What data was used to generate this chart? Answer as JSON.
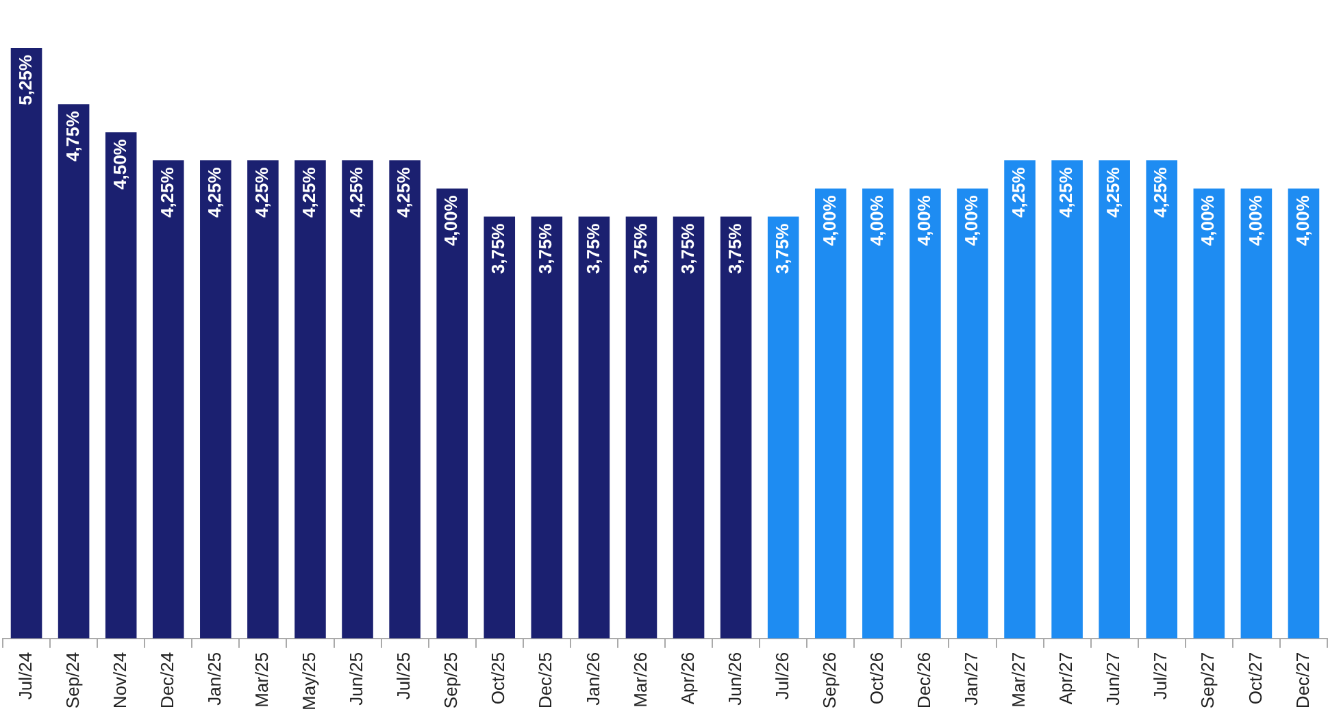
{
  "chart_data": {
    "type": "bar",
    "categories": [
      "Jul/24",
      "Sep/24",
      "Nov/24",
      "Dec/24",
      "Jan/25",
      "Mar/25",
      "May/25",
      "Jun/25",
      "Jul/25",
      "Sep/25",
      "Oct/25",
      "Dec/25",
      "Jan/26",
      "Mar/26",
      "Apr/26",
      "Jun/26",
      "Jul/26",
      "Sep/26",
      "Oct/26",
      "Dec/26",
      "Jan/27",
      "Mar/27",
      "Apr/27",
      "Jun/27",
      "Jul/27",
      "Sep/27",
      "Oct/27",
      "Dec/27"
    ],
    "values": [
      5.25,
      4.75,
      4.5,
      4.25,
      4.25,
      4.25,
      4.25,
      4.25,
      4.25,
      4.0,
      3.75,
      3.75,
      3.75,
      3.75,
      3.75,
      3.75,
      3.75,
      4.0,
      4.0,
      4.0,
      4.0,
      4.25,
      4.25,
      4.25,
      4.25,
      4.0,
      4.0,
      4.0
    ],
    "value_labels": [
      "5,25%",
      "4,75%",
      "4,50%",
      "4,25%",
      "4,25%",
      "4,25%",
      "4,25%",
      "4,25%",
      "4,25%",
      "4,00%",
      "3,75%",
      "3,75%",
      "3,75%",
      "3,75%",
      "3,75%",
      "3,75%",
      "3,75%",
      "4,00%",
      "4,00%",
      "4,00%",
      "4,00%",
      "4,25%",
      "4,25%",
      "4,25%",
      "4,25%",
      "4,00%",
      "4,00%",
      "4,00%"
    ],
    "colors": [
      "#1b2070",
      "#1b2070",
      "#1b2070",
      "#1b2070",
      "#1b2070",
      "#1b2070",
      "#1b2070",
      "#1b2070",
      "#1b2070",
      "#1b2070",
      "#1b2070",
      "#1b2070",
      "#1b2070",
      "#1b2070",
      "#1b2070",
      "#1b2070",
      "#1e8cf2",
      "#1e8cf2",
      "#1e8cf2",
      "#1e8cf2",
      "#1e8cf2",
      "#1e8cf2",
      "#1e8cf2",
      "#1e8cf2",
      "#1e8cf2",
      "#1e8cf2",
      "#1e8cf2",
      "#1e8cf2"
    ],
    "grid": false,
    "legend": false,
    "tick_labels": "x"
  }
}
